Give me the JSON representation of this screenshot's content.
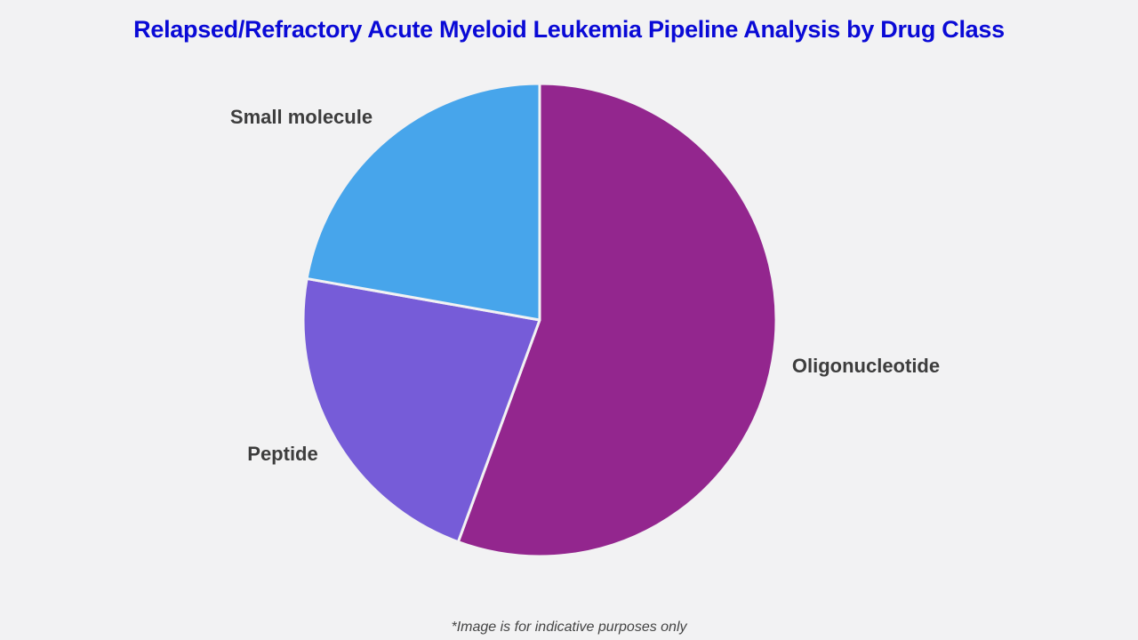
{
  "title": "Relapsed/Refractory Acute Myeloid Leukemia Pipeline Analysis by Drug Class",
  "footnote": "*Image is for indicative purposes only",
  "colors": {
    "title": "#0a0ad6",
    "oligonucleotide": "#93268e",
    "peptide": "#765cd8",
    "small_molecule": "#47a5eb",
    "background": "#f2f2f3"
  },
  "chart_data": {
    "type": "pie",
    "title": "Relapsed/Refractory Acute Myeloid Leukemia Pipeline Analysis by Drug Class",
    "categories": [
      "Oligonucleotide",
      "Peptide",
      "Small molecule"
    ],
    "values": [
      55.6,
      22.2,
      22.2
    ],
    "unit": "%",
    "start_angle": "12 o'clock, clockwise",
    "legend": "none (direct slice labels)"
  },
  "labels": {
    "oligonucleotide": "Oligonucleotide",
    "peptide": "Peptide",
    "small_molecule": "Small molecule"
  }
}
